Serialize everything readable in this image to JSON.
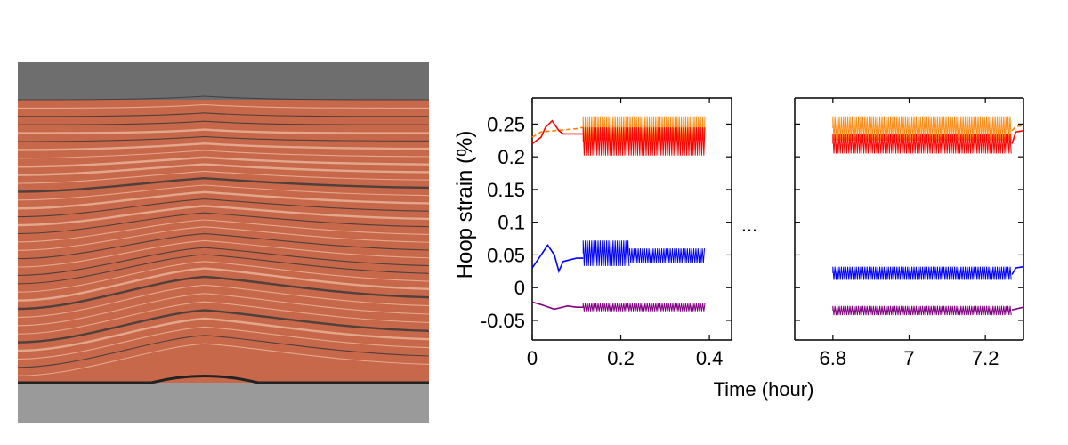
{
  "photo": {
    "subject": "cross-section of layered copper tape winding with a kink",
    "colors": {
      "copper": "#c8684a",
      "dark_layer": "#3a3a3a",
      "base": "#9a9a9a",
      "top": "#6e6e6e"
    }
  },
  "chart_data": {
    "type": "line",
    "xlabel": "Time (hour)",
    "ylabel": "Hoop strain (%)",
    "ylim": [
      -0.08,
      0.29
    ],
    "yticks": [
      -0.05,
      0,
      0.05,
      0.1,
      0.15,
      0.2,
      0.25
    ],
    "ytick_labels": [
      "-0.05",
      "0",
      "0.05",
      "0.1",
      "0.15",
      "0.2",
      "0.25"
    ],
    "axis_break_label": "...",
    "panels": [
      {
        "xlim": [
          0,
          0.45
        ],
        "xticks": [
          0,
          0.2,
          0.4
        ],
        "xtick_labels": [
          "0",
          "0.2",
          "0.4"
        ]
      },
      {
        "xlim": [
          6.7,
          7.3
        ],
        "xticks": [
          6.8,
          7,
          7.2
        ],
        "xtick_labels": [
          "6.8",
          "7",
          "7.2"
        ]
      }
    ],
    "grid": false,
    "series": [
      {
        "color": "#ff8000",
        "dashed": true,
        "ramp": [
          [
            0,
            0.23
          ],
          [
            0.02,
            0.238
          ],
          [
            0.05,
            0.24
          ],
          [
            0.1,
            0.243
          ],
          [
            0.115,
            0.245
          ]
        ],
        "bands": [
          [
            0.115,
            0.39,
            0.215,
            0.262
          ],
          [
            6.8,
            7.27,
            0.225,
            0.262
          ]
        ],
        "tail": [
          [
            7.27,
            0.24
          ],
          [
            7.28,
            0.246
          ],
          [
            7.3,
            0.248
          ]
        ]
      },
      {
        "color": "#ff0000",
        "dashed": false,
        "ramp": [
          [
            0,
            0.22
          ],
          [
            0.01,
            0.225
          ],
          [
            0.02,
            0.23
          ],
          [
            0.03,
            0.245
          ],
          [
            0.045,
            0.255
          ],
          [
            0.06,
            0.24
          ],
          [
            0.07,
            0.235
          ],
          [
            0.1,
            0.235
          ],
          [
            0.115,
            0.235
          ]
        ],
        "bands": [
          [
            0.115,
            0.39,
            0.202,
            0.245
          ],
          [
            6.8,
            7.27,
            0.205,
            0.235
          ]
        ],
        "tail": [
          [
            7.27,
            0.22
          ],
          [
            7.28,
            0.238
          ],
          [
            7.3,
            0.24
          ]
        ]
      },
      {
        "color": "#0000ff",
        "dashed": false,
        "ramp": [
          [
            0,
            0.03
          ],
          [
            0.01,
            0.04
          ],
          [
            0.02,
            0.05
          ],
          [
            0.035,
            0.065
          ],
          [
            0.05,
            0.05
          ],
          [
            0.06,
            0.025
          ],
          [
            0.07,
            0.04
          ],
          [
            0.1,
            0.045
          ],
          [
            0.115,
            0.045
          ]
        ],
        "bands": [
          [
            0.115,
            0.22,
            0.033,
            0.072
          ],
          [
            0.22,
            0.39,
            0.037,
            0.06
          ],
          [
            6.8,
            7.27,
            0.012,
            0.032
          ]
        ],
        "tail": [
          [
            7.27,
            0.02
          ],
          [
            7.28,
            0.03
          ],
          [
            7.3,
            0.032
          ]
        ]
      },
      {
        "color": "#800080",
        "dashed": false,
        "ramp": [
          [
            0,
            -0.022
          ],
          [
            0.02,
            -0.026
          ],
          [
            0.05,
            -0.033
          ],
          [
            0.08,
            -0.028
          ],
          [
            0.1,
            -0.03
          ],
          [
            0.115,
            -0.03
          ]
        ],
        "bands": [
          [
            0.115,
            0.39,
            -0.036,
            -0.024
          ],
          [
            6.8,
            7.27,
            -0.042,
            -0.028
          ]
        ],
        "tail": [
          [
            7.27,
            -0.034
          ],
          [
            7.3,
            -0.03
          ]
        ]
      }
    ]
  }
}
